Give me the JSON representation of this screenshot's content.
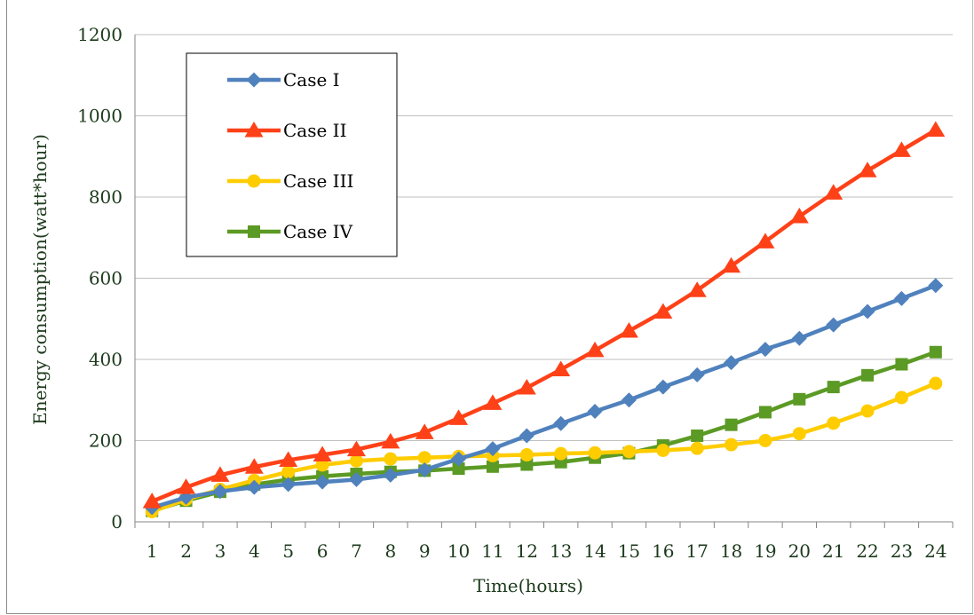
{
  "chart_data": {
    "type": "line",
    "title": "",
    "xlabel": "Time(hours)",
    "ylabel": "Energy consumption(watt*hour)",
    "ylim": [
      0,
      1200
    ],
    "yticks": [
      "0",
      "200",
      "400",
      "600",
      "800",
      "1000",
      "1200"
    ],
    "categories": [
      "1",
      "2",
      "3",
      "4",
      "5",
      "6",
      "7",
      "8",
      "9",
      "10",
      "11",
      "12",
      "13",
      "14",
      "15",
      "16",
      "17",
      "18",
      "19",
      "20",
      "21",
      "22",
      "23",
      "24"
    ],
    "grid": "horizontal",
    "legend": "top-left",
    "series": [
      {
        "name": "Case I",
        "color": "#4f81bd",
        "marker": "diamond",
        "values": [
          35,
          60,
          75,
          85,
          92,
          98,
          104,
          115,
          128,
          155,
          180,
          212,
          242,
          272,
          300,
          332,
          362,
          392,
          425,
          452,
          485,
          518,
          550,
          582
        ]
      },
      {
        "name": "Case II",
        "color": "#ff4118",
        "marker": "triangle",
        "values": [
          50,
          85,
          115,
          135,
          152,
          165,
          178,
          197,
          220,
          255,
          292,
          330,
          375,
          422,
          470,
          517,
          570,
          630,
          690,
          752,
          810,
          865,
          915,
          965
        ]
      },
      {
        "name": "Case III",
        "color": "#ffcc00",
        "marker": "circle",
        "values": [
          25,
          55,
          80,
          102,
          123,
          140,
          150,
          155,
          158,
          161,
          163,
          165,
          168,
          170,
          173,
          176,
          181,
          190,
          200,
          217,
          243,
          273,
          306,
          341
        ]
      },
      {
        "name": "Case IV",
        "color": "#5b9a24",
        "marker": "square",
        "values": [
          27,
          52,
          74,
          92,
          104,
          112,
          118,
          123,
          126,
          131,
          136,
          141,
          147,
          158,
          169,
          188,
          212,
          239,
          270,
          302,
          332,
          361,
          388,
          418
        ]
      }
    ]
  }
}
